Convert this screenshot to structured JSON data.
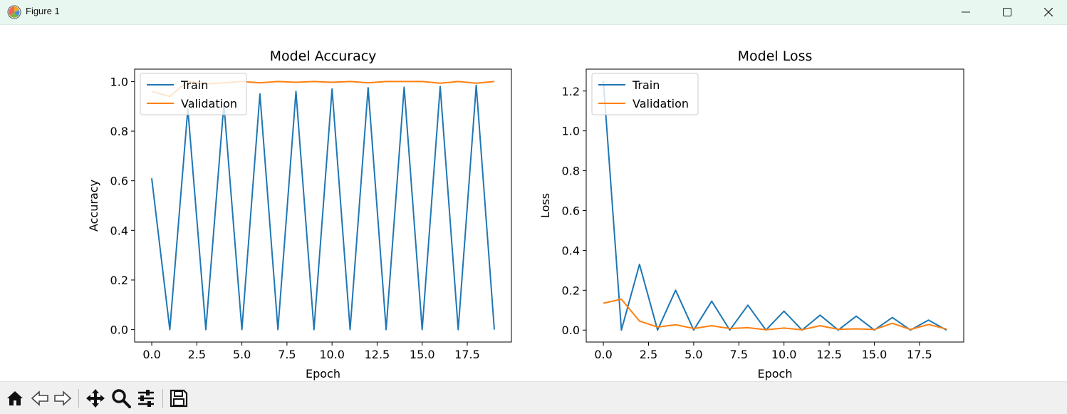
{
  "window": {
    "title": "Figure 1",
    "icons": [
      "app-icon",
      "minimize-icon",
      "maximize-icon",
      "close-icon"
    ]
  },
  "toolbar": {
    "icons": [
      "home-icon",
      "back-icon",
      "forward-icon",
      "pan-icon",
      "zoom-icon",
      "configure-subplots-icon",
      "save-icon"
    ]
  },
  "colors": {
    "train": "#1f77b4",
    "validation": "#ff7f0e",
    "titlebar": "#e8f7ef"
  },
  "chart_data": [
    {
      "type": "line",
      "title": "Model Accuracy",
      "xlabel": "Epoch",
      "ylabel": "Accuracy",
      "xlim": [
        -0.95,
        19.95
      ],
      "ylim": [
        -0.05,
        1.05
      ],
      "xticks": [
        "0.0",
        "2.5",
        "5.0",
        "7.5",
        "10.0",
        "12.5",
        "15.0",
        "17.5"
      ],
      "xtick_values": [
        0,
        2.5,
        5,
        7.5,
        10,
        12.5,
        15,
        17.5
      ],
      "yticks": [
        "0.0",
        "0.2",
        "0.4",
        "0.6",
        "0.8",
        "1.0"
      ],
      "ytick_values": [
        0,
        0.2,
        0.4,
        0.6,
        0.8,
        1.0
      ],
      "legend": "upper-left",
      "grid": false,
      "x": [
        0,
        1,
        2,
        3,
        4,
        5,
        6,
        7,
        8,
        9,
        10,
        11,
        12,
        13,
        14,
        15,
        16,
        17,
        18,
        19
      ],
      "series": [
        {
          "name": "Train",
          "color": "#1f77b4",
          "values": [
            0.61,
            0.0,
            0.89,
            0.0,
            0.91,
            0.0,
            0.95,
            0.0,
            0.96,
            0.0,
            0.97,
            0.0,
            0.975,
            0.0,
            0.977,
            0.0,
            0.98,
            0.0,
            0.985,
            0.0
          ]
        },
        {
          "name": "Validation",
          "color": "#ff7f0e",
          "values": [
            0.96,
            0.94,
            1.0,
            0.99,
            0.995,
            1.0,
            0.995,
            1.0,
            0.997,
            1.0,
            0.997,
            1.0,
            0.995,
            1.0,
            1.0,
            1.0,
            0.993,
            1.0,
            0.993,
            1.0
          ]
        }
      ]
    },
    {
      "type": "line",
      "title": "Model Loss",
      "xlabel": "Epoch",
      "ylabel": "Loss",
      "xlim": [
        -0.95,
        19.95
      ],
      "ylim": [
        -0.06,
        1.31
      ],
      "xticks": [
        "0.0",
        "2.5",
        "5.0",
        "7.5",
        "10.0",
        "12.5",
        "15.0",
        "17.5"
      ],
      "xtick_values": [
        0,
        2.5,
        5,
        7.5,
        10,
        12.5,
        15,
        17.5
      ],
      "yticks": [
        "0.0",
        "0.2",
        "0.4",
        "0.6",
        "0.8",
        "1.0",
        "1.2"
      ],
      "ytick_values": [
        0,
        0.2,
        0.4,
        0.6,
        0.8,
        1.0,
        1.2
      ],
      "legend": "upper-left",
      "grid": false,
      "x": [
        0,
        1,
        2,
        3,
        4,
        5,
        6,
        7,
        8,
        9,
        10,
        11,
        12,
        13,
        14,
        15,
        16,
        17,
        18,
        19
      ],
      "series": [
        {
          "name": "Train",
          "color": "#1f77b4",
          "values": [
            1.25,
            0.0,
            0.33,
            0.0,
            0.2,
            0.0,
            0.145,
            0.0,
            0.125,
            0.0,
            0.095,
            0.0,
            0.075,
            0.0,
            0.07,
            0.0,
            0.063,
            0.0,
            0.05,
            0.0
          ]
        },
        {
          "name": "Validation",
          "color": "#ff7f0e",
          "values": [
            0.135,
            0.155,
            0.045,
            0.015,
            0.027,
            0.008,
            0.022,
            0.008,
            0.012,
            0.002,
            0.01,
            0.002,
            0.022,
            0.004,
            0.006,
            0.003,
            0.034,
            0.003,
            0.028,
            0.005
          ]
        }
      ]
    }
  ]
}
